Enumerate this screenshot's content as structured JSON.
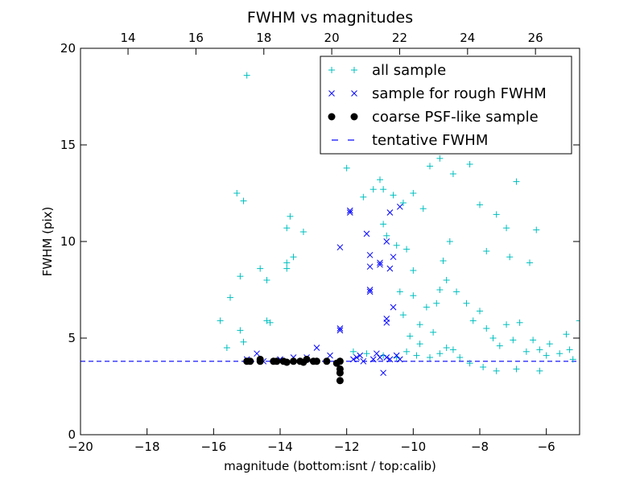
{
  "chart_data": {
    "type": "scatter",
    "title": "FWHM vs magnitudes",
    "xlabel": "magnitude (bottom:isnt / top:calib)",
    "ylabel": "FWHM (pix)",
    "xlim": [
      -20,
      -5
    ],
    "ylim": [
      0,
      20
    ],
    "xticks": [
      -20,
      -18,
      -16,
      -14,
      -12,
      -10,
      -8,
      -6
    ],
    "yticks": [
      0,
      5,
      10,
      15,
      20
    ],
    "top_axis": {
      "xlim": [
        12.6,
        27.3
      ],
      "ticks": [
        14,
        16,
        18,
        20,
        22,
        24,
        26
      ]
    },
    "grid": false,
    "legend": {
      "position": "top-right"
    },
    "series": [
      {
        "name": "all sample",
        "marker": "plus",
        "color": "#00bfbf",
        "points": [
          [
            -15.0,
            18.6
          ],
          [
            -15.3,
            12.5
          ],
          [
            -15.1,
            12.1
          ],
          [
            -15.2,
            8.2
          ],
          [
            -15.5,
            7.1
          ],
          [
            -15.2,
            5.4
          ],
          [
            -15.8,
            5.9
          ],
          [
            -15.6,
            4.5
          ],
          [
            -15.1,
            4.8
          ],
          [
            -14.6,
            8.6
          ],
          [
            -14.4,
            8.0
          ],
          [
            -14.4,
            5.9
          ],
          [
            -14.3,
            5.8
          ],
          [
            -13.8,
            8.9
          ],
          [
            -13.8,
            8.6
          ],
          [
            -13.6,
            9.2
          ],
          [
            -13.8,
            10.7
          ],
          [
            -13.7,
            11.3
          ],
          [
            -13.3,
            10.5
          ],
          [
            -12.0,
            13.8
          ],
          [
            -11.5,
            12.3
          ],
          [
            -11.2,
            12.7
          ],
          [
            -11.0,
            13.2
          ],
          [
            -10.9,
            12.7
          ],
          [
            -10.6,
            12.4
          ],
          [
            -10.3,
            12.0
          ],
          [
            -10.0,
            12.5
          ],
          [
            -9.7,
            11.7
          ],
          [
            -9.5,
            13.9
          ],
          [
            -9.2,
            14.3
          ],
          [
            -8.8,
            13.5
          ],
          [
            -8.3,
            14.0
          ],
          [
            -8.0,
            11.9
          ],
          [
            -7.5,
            11.4
          ],
          [
            -6.9,
            13.1
          ],
          [
            -6.3,
            10.6
          ],
          [
            -7.2,
            10.7
          ],
          [
            -7.1,
            9.2
          ],
          [
            -6.5,
            8.9
          ],
          [
            -7.8,
            9.5
          ],
          [
            -10.9,
            10.9
          ],
          [
            -10.8,
            10.3
          ],
          [
            -10.5,
            9.8
          ],
          [
            -10.2,
            9.6
          ],
          [
            -10.0,
            8.5
          ],
          [
            -10.4,
            7.4
          ],
          [
            -10.0,
            7.2
          ],
          [
            -10.3,
            6.2
          ],
          [
            -10.1,
            5.1
          ],
          [
            -9.8,
            5.7
          ],
          [
            -9.6,
            6.6
          ],
          [
            -9.8,
            4.7
          ],
          [
            -8.4,
            6.8
          ],
          [
            -8.7,
            7.4
          ],
          [
            -8.2,
            5.9
          ],
          [
            -8.0,
            6.4
          ],
          [
            -7.8,
            5.5
          ],
          [
            -7.6,
            5.0
          ],
          [
            -7.4,
            4.6
          ],
          [
            -7.2,
            5.7
          ],
          [
            -7.0,
            4.9
          ],
          [
            -6.8,
            5.8
          ],
          [
            -6.6,
            4.3
          ],
          [
            -6.4,
            4.9
          ],
          [
            -6.2,
            4.4
          ],
          [
            -5.9,
            4.7
          ],
          [
            -5.6,
            4.2
          ],
          [
            -5.3,
            4.4
          ],
          [
            -5.0,
            5.9
          ],
          [
            -5.4,
            5.2
          ],
          [
            -6.0,
            4.1
          ],
          [
            -9.0,
            8.0
          ],
          [
            -9.1,
            9.0
          ],
          [
            -8.9,
            10.0
          ],
          [
            -9.2,
            7.5
          ],
          [
            -9.3,
            6.8
          ],
          [
            -9.4,
            5.3
          ],
          [
            -9.0,
            4.5
          ],
          [
            -8.6,
            4.0
          ],
          [
            -8.3,
            3.7
          ],
          [
            -7.9,
            3.5
          ],
          [
            -7.5,
            3.3
          ],
          [
            -6.9,
            3.4
          ],
          [
            -6.2,
            3.3
          ],
          [
            -5.2,
            3.9
          ],
          [
            -11.8,
            4.3
          ],
          [
            -11.4,
            4.2
          ],
          [
            -10.9,
            4.1
          ],
          [
            -10.5,
            4.0
          ],
          [
            -10.2,
            4.3
          ],
          [
            -9.9,
            4.1
          ],
          [
            -9.5,
            4.0
          ],
          [
            -9.2,
            4.2
          ],
          [
            -8.8,
            4.4
          ]
        ]
      },
      {
        "name": "sample for rough FWHM",
        "marker": "x",
        "color": "#0000ff",
        "points": [
          [
            -15.0,
            3.9
          ],
          [
            -14.7,
            4.2
          ],
          [
            -14.5,
            3.8
          ],
          [
            -14.0,
            3.9
          ],
          [
            -13.6,
            4.0
          ],
          [
            -13.2,
            4.0
          ],
          [
            -12.9,
            4.5
          ],
          [
            -12.5,
            4.1
          ],
          [
            -12.2,
            9.7
          ],
          [
            -12.2,
            5.5
          ],
          [
            -12.2,
            5.4
          ],
          [
            -11.9,
            11.6
          ],
          [
            -11.9,
            11.5
          ],
          [
            -11.7,
            4.0
          ],
          [
            -11.4,
            10.4
          ],
          [
            -11.3,
            9.3
          ],
          [
            -11.3,
            8.7
          ],
          [
            -11.3,
            7.5
          ],
          [
            -11.3,
            7.4
          ],
          [
            -11.0,
            8.9
          ],
          [
            -11.0,
            8.8
          ],
          [
            -10.8,
            10.0
          ],
          [
            -10.7,
            11.5
          ],
          [
            -10.6,
            9.2
          ],
          [
            -10.7,
            8.6
          ],
          [
            -10.8,
            6.0
          ],
          [
            -10.8,
            5.8
          ],
          [
            -10.6,
            6.6
          ],
          [
            -10.4,
            11.8
          ],
          [
            -11.0,
            4.0
          ],
          [
            -10.4,
            3.9
          ],
          [
            -10.7,
            3.9
          ],
          [
            -11.2,
            3.9
          ],
          [
            -11.5,
            3.8
          ],
          [
            -11.8,
            3.9
          ],
          [
            -10.9,
            3.2
          ],
          [
            -11.6,
            4.1
          ],
          [
            -11.1,
            4.2
          ],
          [
            -10.5,
            4.1
          ],
          [
            -10.8,
            4.0
          ]
        ]
      },
      {
        "name": "coarse PSF-like sample",
        "marker": "dot",
        "color": "#000000",
        "points": [
          [
            -15.0,
            3.8
          ],
          [
            -14.9,
            3.8
          ],
          [
            -14.6,
            3.8
          ],
          [
            -14.6,
            3.9
          ],
          [
            -14.2,
            3.8
          ],
          [
            -14.1,
            3.8
          ],
          [
            -13.9,
            3.8
          ],
          [
            -13.8,
            3.75
          ],
          [
            -13.6,
            3.8
          ],
          [
            -13.4,
            3.8
          ],
          [
            -13.3,
            3.75
          ],
          [
            -13.2,
            3.9
          ],
          [
            -13.0,
            3.8
          ],
          [
            -12.9,
            3.8
          ],
          [
            -12.6,
            3.8
          ],
          [
            -12.3,
            3.7
          ],
          [
            -12.2,
            3.8
          ],
          [
            -12.2,
            3.4
          ],
          [
            -12.2,
            3.2
          ],
          [
            -12.2,
            2.8
          ]
        ]
      }
    ],
    "reference_line": {
      "name": "tentative FWHM",
      "y": 3.8,
      "color": "#0000ff",
      "style": "dashed"
    }
  }
}
